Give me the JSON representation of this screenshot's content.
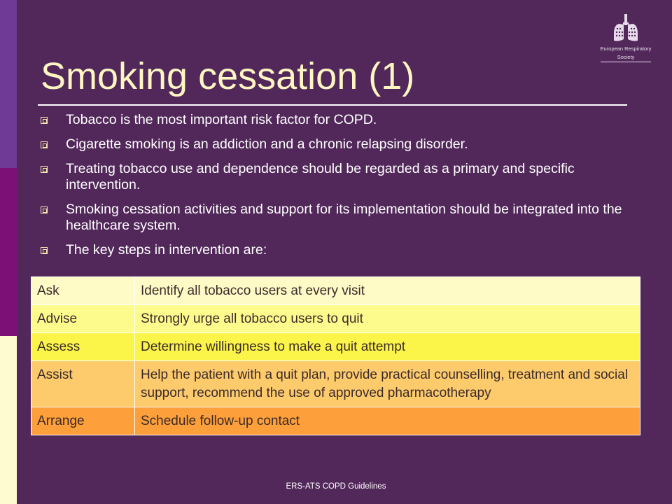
{
  "slide": {
    "title": "Smoking cessation (1)",
    "footer": "ERS-ATS COPD Guidelines"
  },
  "logo": {
    "line1": "European Respiratory",
    "line2": "Society",
    "icon": "lungs-logo-icon"
  },
  "bullets": [
    "Tobacco is the most important risk factor for COPD.",
    "Cigarette smoking is an addiction and a chronic relapsing disorder.",
    "Treating tobacco use and dependence should be regarded as a primary and specific intervention.",
    "Smoking cessation activities and support for its implementation should be integrated into the healthcare system.",
    "The key steps in intervention are:"
  ],
  "steps": [
    {
      "step": "Ask",
      "description": "Identify all tobacco users at every visit"
    },
    {
      "step": "Advise",
      "description": "Strongly urge all tobacco users to quit"
    },
    {
      "step": "Assess",
      "description": "Determine willingness to make a quit attempt"
    },
    {
      "step": "Assist",
      "description": "Help the patient with a quit plan, provide practical counselling, treatment and social support, recommend the use of approved pharmacotherapy"
    },
    {
      "step": "Arrange",
      "description": "Schedule follow-up contact"
    }
  ],
  "colors": {
    "background": "#52285b",
    "title": "#fff6c2",
    "row_ask": "#fffbc6",
    "row_advise": "#fefb8d",
    "row_assess": "#fbf54a",
    "row_assist": "#fdcb6c",
    "row_arrange": "#fd9f3a"
  }
}
